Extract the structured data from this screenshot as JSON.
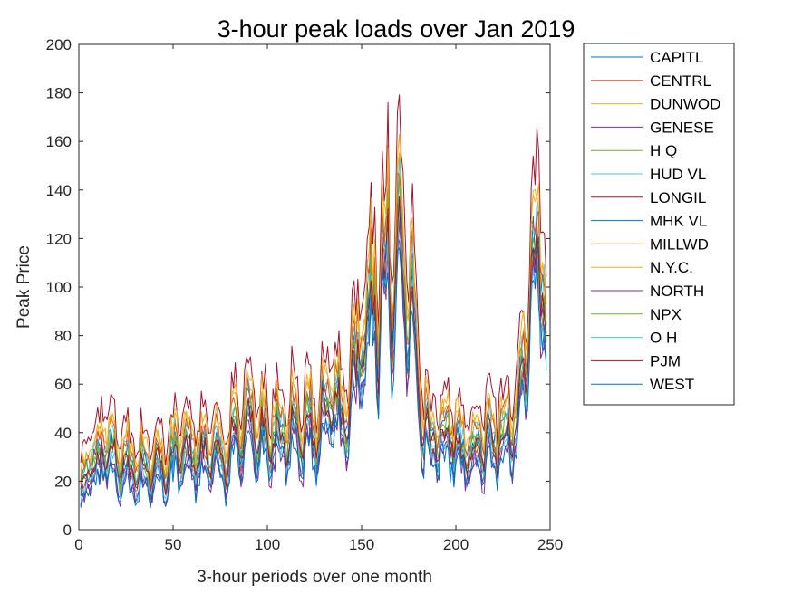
{
  "chart_data": {
    "type": "line",
    "title": "3-hour peak loads over Jan 2019",
    "xlabel": "3-hour periods over one month",
    "ylabel": "Peak Price",
    "xlim": [
      0,
      250
    ],
    "ylim": [
      0,
      200
    ],
    "xticks": [
      0,
      50,
      100,
      150,
      200,
      250
    ],
    "yticks": [
      0,
      20,
      40,
      60,
      80,
      100,
      120,
      140,
      160,
      180,
      200
    ],
    "grid": false,
    "legend_position": "outside-right",
    "x_points": 248,
    "base_profile": [
      [
        1,
        13
      ],
      [
        5,
        24
      ],
      [
        10,
        26
      ],
      [
        14,
        35
      ],
      [
        20,
        28
      ],
      [
        25,
        25
      ],
      [
        30,
        22
      ],
      [
        35,
        23
      ],
      [
        40,
        22
      ],
      [
        45,
        24
      ],
      [
        50,
        27
      ],
      [
        55,
        31
      ],
      [
        60,
        28
      ],
      [
        65,
        29
      ],
      [
        70,
        27
      ],
      [
        75,
        30
      ],
      [
        80,
        31
      ],
      [
        85,
        39
      ],
      [
        90,
        40
      ],
      [
        95,
        37
      ],
      [
        100,
        36
      ],
      [
        105,
        38
      ],
      [
        110,
        39
      ],
      [
        115,
        38
      ],
      [
        120,
        38
      ],
      [
        125,
        41
      ],
      [
        130,
        46
      ],
      [
        135,
        47
      ],
      [
        140,
        46
      ],
      [
        145,
        55
      ],
      [
        150,
        72
      ],
      [
        155,
        85
      ],
      [
        158,
        95
      ],
      [
        162,
        105
      ],
      [
        166,
        112
      ],
      [
        168,
        108
      ],
      [
        171,
        100
      ],
      [
        175,
        92
      ],
      [
        178,
        72
      ],
      [
        181,
        45
      ],
      [
        185,
        36
      ],
      [
        190,
        32
      ],
      [
        195,
        34
      ],
      [
        200,
        34
      ],
      [
        205,
        32
      ],
      [
        210,
        33
      ],
      [
        215,
        33
      ],
      [
        220,
        37
      ],
      [
        225,
        36
      ],
      [
        230,
        42
      ],
      [
        235,
        55
      ],
      [
        238,
        85
      ],
      [
        241,
        100
      ],
      [
        244,
        105
      ],
      [
        246,
        113
      ],
      [
        248,
        85
      ]
    ],
    "series": [
      {
        "name": "CAPITL",
        "color": "#0072bd",
        "offset": 4,
        "scale": 1.02
      },
      {
        "name": "CENTRL",
        "color": "#d95319",
        "offset": 0,
        "scale": 0.97
      },
      {
        "name": "DUNWOD",
        "color": "#edb120",
        "offset": 7,
        "scale": 1.12
      },
      {
        "name": "GENESE",
        "color": "#7e2f8e",
        "offset": -2,
        "scale": 0.93
      },
      {
        "name": "H Q",
        "color": "#77ac30",
        "offset": 2,
        "scale": 0.96
      },
      {
        "name": "HUD VL",
        "color": "#4dbeee",
        "offset": 5,
        "scale": 1.06
      },
      {
        "name": "LONGIL",
        "color": "#a2142f",
        "offset": 11,
        "scale": 1.22
      },
      {
        "name": "MHK VL",
        "color": "#0072bd",
        "offset": 1,
        "scale": 0.99
      },
      {
        "name": "MILLWD",
        "color": "#d95319",
        "offset": 6,
        "scale": 1.08
      },
      {
        "name": "N.Y.C.",
        "color": "#edb120",
        "offset": 8,
        "scale": 1.13
      },
      {
        "name": "NORTH",
        "color": "#7e2f8e",
        "offset": -3,
        "scale": 0.91
      },
      {
        "name": "NPX",
        "color": "#77ac30",
        "offset": 3,
        "scale": 1.01
      },
      {
        "name": "O H",
        "color": "#4dbeee",
        "offset": -1,
        "scale": 0.94
      },
      {
        "name": "PJM",
        "color": "#a2142f",
        "offset": 2,
        "scale": 0.98
      },
      {
        "name": "WEST",
        "color": "#0072bd",
        "offset": -3,
        "scale": 0.9
      }
    ]
  }
}
